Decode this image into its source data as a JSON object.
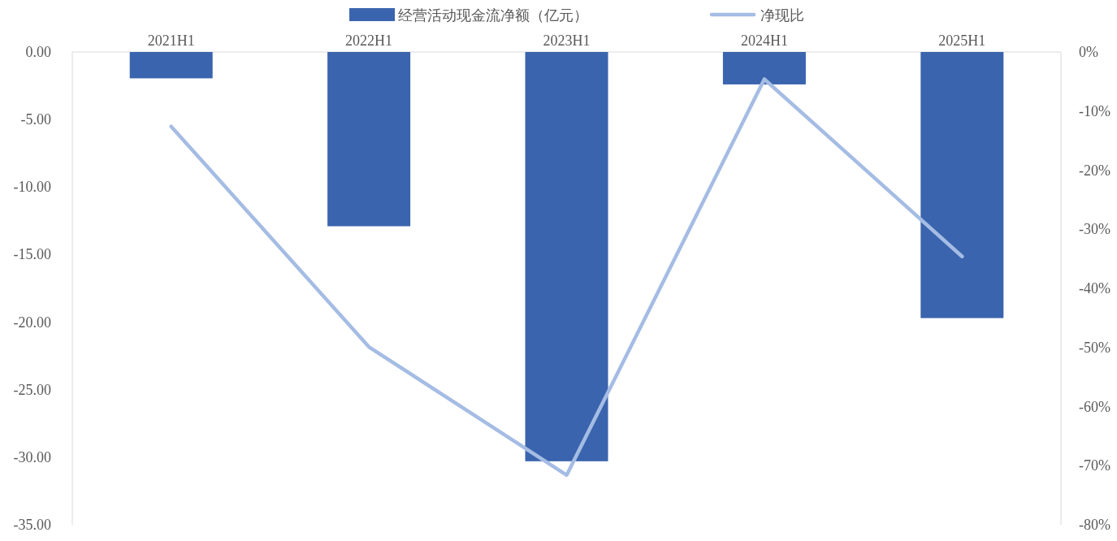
{
  "chart_data": {
    "type": "bar",
    "categories": [
      "2021H1",
      "2022H1",
      "2023H1",
      "2024H1",
      "2025H1"
    ],
    "series": [
      {
        "name": "经营活动现金流净额（亿元）",
        "color": "#3a64ad",
        "values": [
          -1.95,
          -12.9,
          -30.3,
          -2.4,
          -19.7
        ]
      },
      {
        "name": "净现比",
        "type": "line",
        "axis": "y2",
        "color": "#a5bce4",
        "values": [
          -12.6,
          -49.9,
          -71.6,
          -4.6,
          -34.6
        ]
      }
    ],
    "ylim": [
      -35,
      0
    ],
    "yticks": [
      {
        "value": 0,
        "label": "0.00"
      },
      {
        "value": -5,
        "label": "-5.00"
      },
      {
        "value": -10,
        "label": "-10.00"
      },
      {
        "value": -15,
        "label": "-15.00"
      },
      {
        "value": -20,
        "label": "-20.00"
      },
      {
        "value": -25,
        "label": "-25.00"
      },
      {
        "value": -30,
        "label": "-30.00"
      },
      {
        "value": -35,
        "label": "-35.00"
      }
    ],
    "y2lim": [
      -80,
      0
    ],
    "y2ticks": [
      {
        "value": 0,
        "label": "0%"
      },
      {
        "value": -10,
        "label": "-10%"
      },
      {
        "value": -20,
        "label": "-20%"
      },
      {
        "value": -30,
        "label": "-30%"
      },
      {
        "value": -40,
        "label": "-40%"
      },
      {
        "value": -50,
        "label": "-50%"
      },
      {
        "value": -60,
        "label": "-60%"
      },
      {
        "value": -70,
        "label": "-70%"
      },
      {
        "value": -80,
        "label": "-80%"
      }
    ],
    "grid": false,
    "legend": "top",
    "marker": "none",
    "line_style": "solid"
  }
}
